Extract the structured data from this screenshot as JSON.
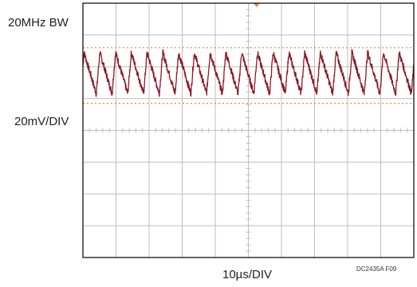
{
  "labels": {
    "bandwidth": "20MHz BW",
    "vertical_scale": "20mV/DIV",
    "horizontal_scale": "10µs/DIV",
    "figure_id": "DC2435A F09"
  },
  "colors": {
    "trace": "#8b1a2b",
    "grid": "#bfbfbf",
    "frame": "#000000",
    "cursor": "#e8893a"
  },
  "chart_data": {
    "type": "line",
    "title": "",
    "xlabel": "10µs/DIV",
    "ylabel": "20mV/DIV",
    "divisions": {
      "x": 10,
      "y": 8
    },
    "x_range_div": [
      0,
      10
    ],
    "y_range_div": [
      -4,
      4
    ],
    "series": [
      {
        "waveform": "sawtooth ripple",
        "cycles_on_screen": 21,
        "center_div": 1.8,
        "peak_to_peak_div": 1.3
      }
    ],
    "cursors": [
      {
        "axis": "y",
        "value_div": 2.6
      },
      {
        "axis": "y",
        "value_div": 0.85
      }
    ],
    "trigger_marker": {
      "axis": "x",
      "value_div": 5.25
    }
  }
}
